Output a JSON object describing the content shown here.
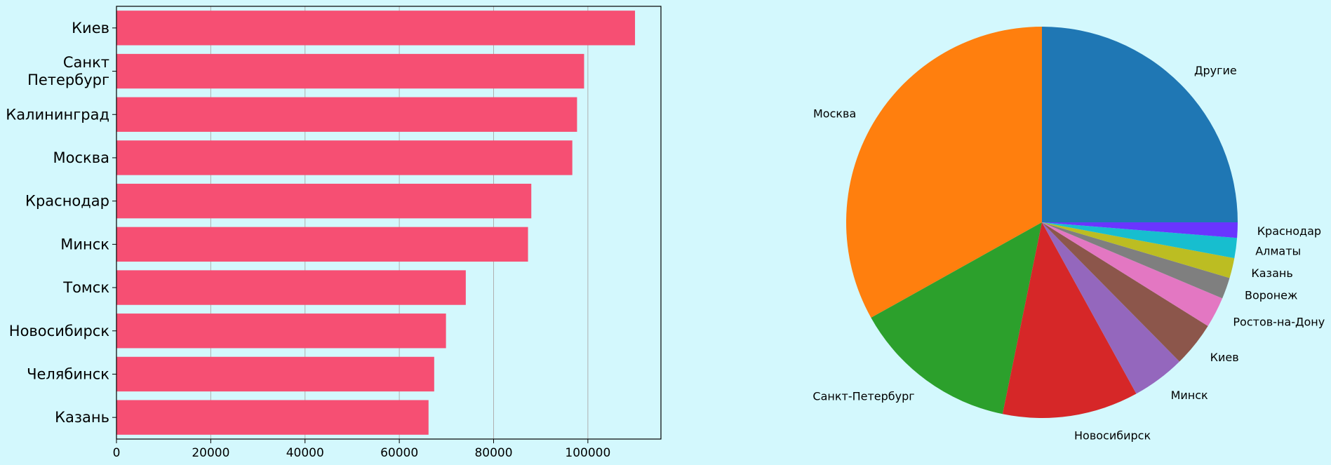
{
  "background": "#d3f8fd",
  "chart_data": [
    {
      "type": "bar",
      "orientation": "horizontal",
      "bar_color": "#f64f73",
      "categories": [
        "Киев",
        "Санкт\nПетербург",
        "Калининград",
        "Москва",
        "Краснодар",
        "Минск",
        "Томск",
        "Новосибирск",
        "Челябинск",
        "Казань"
      ],
      "values": [
        110000,
        99200,
        97700,
        96700,
        88000,
        87300,
        74100,
        69900,
        67400,
        66200
      ],
      "xticks": [
        "0",
        "20000",
        "40000",
        "60000",
        "80000",
        "100000"
      ],
      "xlim": [
        0,
        115500
      ],
      "grid": "vertical"
    },
    {
      "type": "pie",
      "start_angle": 0,
      "direction": "counterclockwise",
      "slices": [
        {
          "label": "Другие",
          "value": 25.6,
          "color": "#1f77b4"
        },
        {
          "label": "Москва",
          "value": 33.9,
          "color": "#ff7f0e"
        },
        {
          "label": "Санкт-Петербург",
          "value": 14.0,
          "color": "#2ca02c"
        },
        {
          "label": "Новосибирск",
          "value": 11.5,
          "color": "#d62728"
        },
        {
          "label": "Минск",
          "value": 4.5,
          "color": "#9467bd"
        },
        {
          "label": "Киев",
          "value": 3.8,
          "color": "#8c564b"
        },
        {
          "label": "Ростов-на-Дону",
          "value": 2.6,
          "color": "#e377c2"
        },
        {
          "label": "Воронеж",
          "value": 1.8,
          "color": "#7f7f7f"
        },
        {
          "label": "Казань",
          "value": 1.7,
          "color": "#bcbd22"
        },
        {
          "label": "Алматы",
          "value": 1.7,
          "color": "#17becf"
        },
        {
          "label": "Краснодар",
          "value": 1.3,
          "color": "#6a35ff"
        }
      ]
    }
  ]
}
